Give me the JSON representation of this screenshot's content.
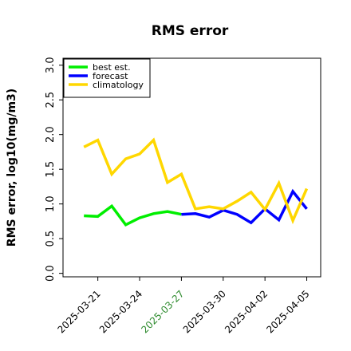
{
  "chart_data": {
    "type": "line",
    "title": "RMS error",
    "xlabel": "",
    "ylabel": "RMS error, log10(mg/m3)",
    "ylim": [
      -0.05,
      3.1
    ],
    "yticks": [
      0.0,
      0.5,
      1.0,
      1.5,
      2.0,
      2.5,
      3.0
    ],
    "ytick_labels": [
      "0.0",
      "0.5",
      "1.0",
      "1.5",
      "2.0",
      "2.5",
      "3.0"
    ],
    "x_type": "date",
    "xlim": [
      "2025-03-18T12:00",
      "2025-04-06"
    ],
    "xticks": [
      "2025-03-21",
      "2025-03-24",
      "2025-03-27",
      "2025-03-30",
      "2025-04-02",
      "2025-04-05"
    ],
    "xtick_labels": [
      "2025-03-21",
      "2025-03-24",
      "2025-03-27",
      "2025-03-30",
      "2025-04-02",
      "2025-04-05"
    ],
    "highlighted_xtick": "2025-03-27",
    "highlight_color": "#2e8b2e",
    "grid": false,
    "legend_position": "top-left",
    "series": [
      {
        "name": "best est.",
        "color": "#00ee00",
        "x": [
          "2025-03-20",
          "2025-03-21",
          "2025-03-22",
          "2025-03-23",
          "2025-03-24",
          "2025-03-25",
          "2025-03-26",
          "2025-03-27"
        ],
        "y": [
          0.83,
          0.82,
          0.97,
          0.7,
          0.8,
          0.86,
          0.89,
          0.85
        ]
      },
      {
        "name": "forecast",
        "color": "#0000ff",
        "x": [
          "2025-03-27",
          "2025-03-28",
          "2025-03-29",
          "2025-03-30",
          "2025-03-31",
          "2025-04-01",
          "2025-04-02",
          "2025-04-03",
          "2025-04-04",
          "2025-04-05"
        ],
        "y": [
          0.85,
          0.86,
          0.81,
          0.91,
          0.85,
          0.73,
          0.93,
          0.77,
          1.18,
          0.93
        ]
      },
      {
        "name": "climatology",
        "color": "#ffd700",
        "x": [
          "2025-03-20",
          "2025-03-21",
          "2025-03-22",
          "2025-03-23",
          "2025-03-24",
          "2025-03-25",
          "2025-03-26",
          "2025-03-27",
          "2025-03-28",
          "2025-03-29",
          "2025-03-30",
          "2025-03-31",
          "2025-04-01",
          "2025-04-02",
          "2025-04-03",
          "2025-04-04",
          "2025-04-05"
        ],
        "y": [
          1.82,
          1.92,
          1.43,
          1.65,
          1.72,
          1.92,
          1.31,
          1.43,
          0.93,
          0.96,
          0.93,
          1.04,
          1.17,
          0.92,
          1.3,
          0.76,
          1.22
        ]
      }
    ]
  }
}
